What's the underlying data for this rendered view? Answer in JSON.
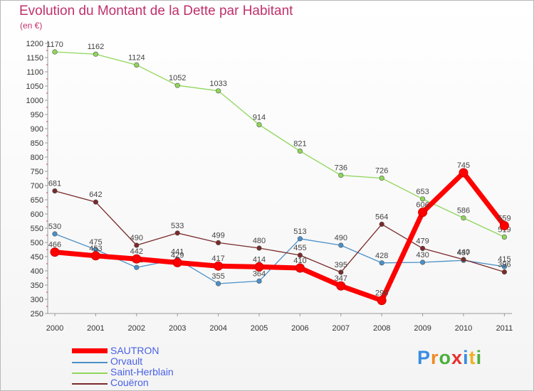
{
  "chart_data": {
    "type": "line",
    "title": "Evolution du Montant de la Dette par Habitant",
    "subtitle": "(en €)",
    "xlabel": "",
    "ylabel": "",
    "categories": [
      "2000",
      "2001",
      "2002",
      "2003",
      "2004",
      "2005",
      "2006",
      "2007",
      "2008",
      "2009",
      "2010",
      "2011"
    ],
    "ylim": [
      250,
      1200
    ],
    "yticks": [
      250,
      300,
      350,
      400,
      450,
      500,
      550,
      600,
      650,
      700,
      750,
      800,
      850,
      900,
      950,
      1000,
      1050,
      1100,
      1150,
      1200
    ],
    "grid": false,
    "legend_position": "bottom-left",
    "series": [
      {
        "name": "SAUTRON",
        "color": "#ff0000",
        "emphasis": true,
        "values": [
          466,
          453,
          442,
          429,
          417,
          414,
          410,
          347,
          296,
          606,
          745,
          559
        ]
      },
      {
        "name": "Orvault",
        "color": "#4a90c8",
        "emphasis": false,
        "values": [
          530,
          475,
          412,
          441,
          355,
          364,
          513,
          490,
          428,
          430,
          437,
          415
        ]
      },
      {
        "name": "Saint-Herblain",
        "color": "#8fd65a",
        "emphasis": false,
        "values": [
          1170,
          1162,
          1124,
          1052,
          1033,
          914,
          821,
          736,
          726,
          653,
          586,
          519
        ]
      },
      {
        "name": "Couëron",
        "color": "#7a2a2a",
        "emphasis": false,
        "values": [
          681,
          642,
          490,
          533,
          499,
          480,
          455,
          395,
          564,
          479,
          440,
          396
        ]
      }
    ]
  },
  "brand": {
    "text": "Proxiti",
    "letters": [
      "P",
      "r",
      "o",
      "x",
      "i",
      "t",
      "i"
    ],
    "colors": [
      "#3a8de0",
      "#f08a24",
      "#4caf3c",
      "#e83030",
      "#3a8de0",
      "#f0b024",
      "#4caf3c"
    ]
  }
}
